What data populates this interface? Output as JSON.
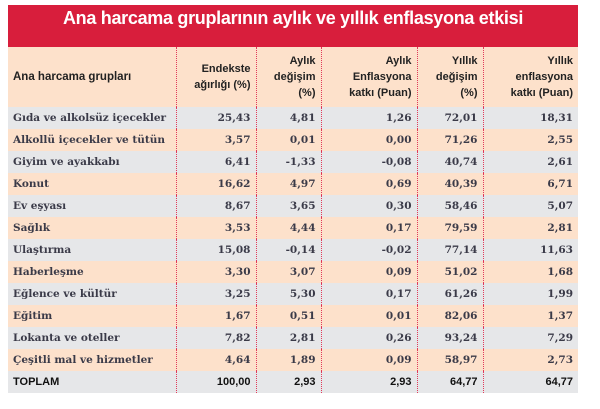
{
  "title": "Ana harcama gruplarının aylık ve yıllık enflasyona etkisi",
  "colors": {
    "banner": "#d81e3c",
    "header_bg": "#fde1cb",
    "row_gray": "#e6e7e9",
    "row_peach": "#fde1cb",
    "divider": "#e03a5a"
  },
  "table": {
    "headers": [
      [
        "Ana harcama grupları"
      ],
      [
        "Endekste",
        "ağırlığı (%)"
      ],
      [
        "Aylık",
        "değişim",
        "(%)"
      ],
      [
        "Aylık",
        "Enflasyona",
        "katkı (Puan)"
      ],
      [
        "Yıllık",
        "değişim",
        "(%)"
      ],
      [
        "Yıllık",
        "enflasyona",
        "katkı (Puan)"
      ]
    ],
    "rows": [
      [
        "Gıda ve alkolsüz içecekler",
        "25,43",
        "4,81",
        "1,26",
        "72,01",
        "18,31"
      ],
      [
        "Alkollü içecekler ve tütün",
        "3,57",
        "0,01",
        "0,00",
        "71,26",
        "2,55"
      ],
      [
        "Giyim ve ayakkabı",
        "6,41",
        "-1,33",
        "-0,08",
        "40,74",
        "2,61"
      ],
      [
        "Konut",
        "16,62",
        "4,97",
        "0,69",
        "40,39",
        "6,71"
      ],
      [
        "Ev eşyası",
        "8,67",
        "3,65",
        "0,30",
        "58,46",
        "5,07"
      ],
      [
        "Sağlık",
        "3,53",
        "4,44",
        "0,17",
        "79,59",
        "2,81"
      ],
      [
        "Ulaştırma",
        "15,08",
        "-0,14",
        "-0,02",
        "77,14",
        "11,63"
      ],
      [
        "Haberleşme",
        "3,30",
        "3,07",
        "0,09",
        "51,02",
        "1,68"
      ],
      [
        "Eğlence ve kültür",
        "3,25",
        "5,30",
        "0,17",
        "61,26",
        "1,99"
      ],
      [
        "Eğitim",
        "1,67",
        "0,51",
        "0,01",
        "82,06",
        "1,37"
      ],
      [
        "Lokanta ve oteller",
        "7,82",
        "2,81",
        "0,26",
        "93,24",
        "7,29"
      ],
      [
        "Çeşitli mal ve hizmetler",
        "4,64",
        "1,89",
        "0,09",
        "58,97",
        "2,73"
      ]
    ],
    "total": [
      "TOPLAM",
      "100,00",
      "2,93",
      "2,93",
      "64,77",
      "64,77"
    ]
  }
}
